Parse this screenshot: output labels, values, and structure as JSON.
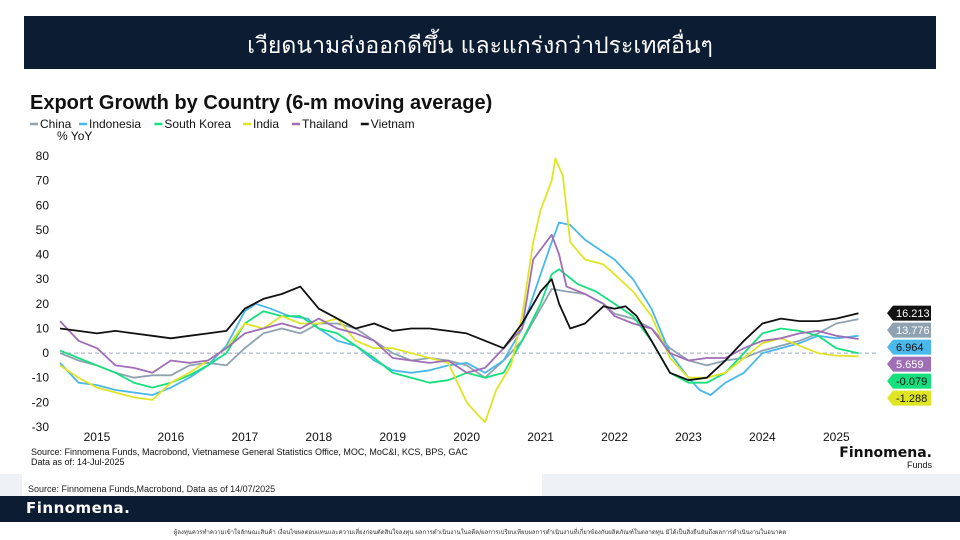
{
  "slide": {
    "title": "เวียดนามส่งออกดีขึ้น และแกร่งกว่าประเทศอื่นๆ",
    "source_note": "Source: Finnomena Funds,Macrobond, Data as of 14/07/2025",
    "footer_logo": "Finnomena.",
    "disclaimer": "ผู้ลงทุนควรทำความเข้าใจลักษณะสินค้า เงื่อนไขผลตอบแทนและความเสี่ยงก่อนตัดสินใจลงทุน ผลการดำเนินงานในอดีต/ผลการเปรียบเทียบผลการดำเนินงานที่เกี่ยวข้องกับผลิตภัณฑ์ในตลาดทุน มิได้เป็นสิ่งยืนยันถึงผลการดำเนินงานในอนาคต"
  },
  "chart_data": {
    "type": "line",
    "title": "Export Growth by Country (6-m moving average)",
    "ylabel": "% YoY",
    "xlabel": "",
    "ylim": [
      -30,
      80
    ],
    "xlim": [
      2014.5,
      2025.55
    ],
    "yticks": [
      80,
      70,
      60,
      50,
      40,
      30,
      20,
      10,
      0,
      -10,
      -20,
      -30
    ],
    "xticks": [
      {
        "label": "2015",
        "x": 2015.0
      },
      {
        "label": "2016",
        "x": 2016.0
      },
      {
        "label": "2017",
        "x": 2017.0
      },
      {
        "label": "2018",
        "x": 2018.0
      },
      {
        "label": "2019",
        "x": 2019.0
      },
      {
        "label": "2020",
        "x": 2020.0
      },
      {
        "label": "2021",
        "x": 2021.0
      },
      {
        "label": "2022",
        "x": 2022.0
      },
      {
        "label": "2023",
        "x": 2023.0
      },
      {
        "label": "2024",
        "x": 2024.0
      },
      {
        "label": "2025",
        "x": 2025.0
      }
    ],
    "zero_line": "dashed",
    "source": "Source: Finnomena Funds, Macrobond, Vietnamese General Statistics Office, MOC, MoC&I, KCS, BPS, GAC",
    "data_as_of": "Data as of: 14-Jul-2025",
    "brand": "Finnomena.",
    "brand_sub": "Funds",
    "series": [
      {
        "name": "China",
        "color": "#8fa2b2",
        "end_label": "13.776",
        "points": [
          [
            2014.5,
            0
          ],
          [
            2014.75,
            -3
          ],
          [
            2015.0,
            -5
          ],
          [
            2015.25,
            -8
          ],
          [
            2015.5,
            -10
          ],
          [
            2015.75,
            -9
          ],
          [
            2016.0,
            -9
          ],
          [
            2016.25,
            -5
          ],
          [
            2016.5,
            -4
          ],
          [
            2016.75,
            -5
          ],
          [
            2017.0,
            2
          ],
          [
            2017.25,
            8
          ],
          [
            2017.5,
            10
          ],
          [
            2017.75,
            8
          ],
          [
            2018.0,
            12
          ],
          [
            2018.25,
            12
          ],
          [
            2018.5,
            10
          ],
          [
            2018.75,
            5
          ],
          [
            2019.0,
            0
          ],
          [
            2019.25,
            -3
          ],
          [
            2019.5,
            -2
          ],
          [
            2019.75,
            -3
          ],
          [
            2020.0,
            -5
          ],
          [
            2020.25,
            -10
          ],
          [
            2020.5,
            -3
          ],
          [
            2020.75,
            5
          ],
          [
            2021.0,
            18
          ],
          [
            2021.15,
            26
          ],
          [
            2021.35,
            25
          ],
          [
            2021.6,
            24
          ],
          [
            2021.85,
            20
          ],
          [
            2022.0,
            16
          ],
          [
            2022.25,
            14
          ],
          [
            2022.5,
            10
          ],
          [
            2022.75,
            2
          ],
          [
            2023.0,
            -3
          ],
          [
            2023.25,
            -5
          ],
          [
            2023.5,
            -3
          ],
          [
            2023.75,
            -2
          ],
          [
            2024.0,
            1
          ],
          [
            2024.25,
            3
          ],
          [
            2024.5,
            5
          ],
          [
            2024.75,
            8
          ],
          [
            2025.0,
            12
          ],
          [
            2025.3,
            13.8
          ]
        ]
      },
      {
        "name": "Indonesia",
        "color": "#4ab8ea",
        "end_label": "6.964",
        "points": [
          [
            2014.5,
            -4
          ],
          [
            2014.75,
            -12
          ],
          [
            2015.0,
            -13
          ],
          [
            2015.25,
            -15
          ],
          [
            2015.5,
            -16
          ],
          [
            2015.75,
            -17
          ],
          [
            2016.0,
            -14
          ],
          [
            2016.25,
            -10
          ],
          [
            2016.5,
            -5
          ],
          [
            2016.75,
            3
          ],
          [
            2017.0,
            17
          ],
          [
            2017.15,
            20
          ],
          [
            2017.35,
            18
          ],
          [
            2017.6,
            15
          ],
          [
            2017.85,
            14
          ],
          [
            2018.0,
            10
          ],
          [
            2018.25,
            5
          ],
          [
            2018.5,
            3
          ],
          [
            2018.75,
            -3
          ],
          [
            2019.0,
            -7
          ],
          [
            2019.25,
            -8
          ],
          [
            2019.5,
            -7
          ],
          [
            2019.75,
            -5
          ],
          [
            2020.0,
            -4
          ],
          [
            2020.25,
            -8
          ],
          [
            2020.5,
            -3
          ],
          [
            2020.75,
            10
          ],
          [
            2021.0,
            32
          ],
          [
            2021.15,
            45
          ],
          [
            2021.25,
            53
          ],
          [
            2021.4,
            52
          ],
          [
            2021.6,
            46
          ],
          [
            2021.85,
            41
          ],
          [
            2022.0,
            38
          ],
          [
            2022.25,
            30
          ],
          [
            2022.5,
            18
          ],
          [
            2022.75,
            0
          ],
          [
            2023.0,
            -10
          ],
          [
            2023.15,
            -15
          ],
          [
            2023.3,
            -17
          ],
          [
            2023.5,
            -12
          ],
          [
            2023.75,
            -8
          ],
          [
            2024.0,
            0
          ],
          [
            2024.25,
            2
          ],
          [
            2024.5,
            4
          ],
          [
            2024.75,
            7
          ],
          [
            2025.0,
            6
          ],
          [
            2025.3,
            7
          ]
        ]
      },
      {
        "name": "South Korea",
        "color": "#16e07e",
        "end_label": "-0.079",
        "points": [
          [
            2014.5,
            1
          ],
          [
            2014.75,
            -2
          ],
          [
            2015.0,
            -5
          ],
          [
            2015.25,
            -8
          ],
          [
            2015.5,
            -12
          ],
          [
            2015.75,
            -14
          ],
          [
            2016.0,
            -12
          ],
          [
            2016.25,
            -9
          ],
          [
            2016.5,
            -5
          ],
          [
            2016.75,
            0
          ],
          [
            2017.0,
            12
          ],
          [
            2017.25,
            17
          ],
          [
            2017.5,
            15
          ],
          [
            2017.75,
            15
          ],
          [
            2018.0,
            10
          ],
          [
            2018.25,
            8
          ],
          [
            2018.5,
            3
          ],
          [
            2018.75,
            -2
          ],
          [
            2019.0,
            -8
          ],
          [
            2019.25,
            -10
          ],
          [
            2019.5,
            -12
          ],
          [
            2019.75,
            -11
          ],
          [
            2020.0,
            -8
          ],
          [
            2020.25,
            -10
          ],
          [
            2020.5,
            -8
          ],
          [
            2020.75,
            5
          ],
          [
            2021.0,
            20
          ],
          [
            2021.15,
            32
          ],
          [
            2021.25,
            34
          ],
          [
            2021.5,
            28
          ],
          [
            2021.75,
            25
          ],
          [
            2022.0,
            20
          ],
          [
            2022.25,
            15
          ],
          [
            2022.5,
            5
          ],
          [
            2022.75,
            -8
          ],
          [
            2023.0,
            -12
          ],
          [
            2023.25,
            -12
          ],
          [
            2023.5,
            -8
          ],
          [
            2023.75,
            0
          ],
          [
            2024.0,
            8
          ],
          [
            2024.25,
            10
          ],
          [
            2024.5,
            9
          ],
          [
            2024.75,
            7
          ],
          [
            2025.0,
            2
          ],
          [
            2025.3,
            -0.1
          ]
        ]
      },
      {
        "name": "India",
        "color": "#dfe524",
        "end_label": "-1.288",
        "points": [
          [
            2014.5,
            -5
          ],
          [
            2014.75,
            -10
          ],
          [
            2015.0,
            -14
          ],
          [
            2015.25,
            -16
          ],
          [
            2015.5,
            -18
          ],
          [
            2015.75,
            -19
          ],
          [
            2016.0,
            -12
          ],
          [
            2016.25,
            -8
          ],
          [
            2016.5,
            -3
          ],
          [
            2016.75,
            2
          ],
          [
            2017.0,
            12
          ],
          [
            2017.25,
            10
          ],
          [
            2017.5,
            15
          ],
          [
            2017.75,
            12
          ],
          [
            2018.0,
            12
          ],
          [
            2018.25,
            14
          ],
          [
            2018.5,
            5
          ],
          [
            2018.75,
            2
          ],
          [
            2019.0,
            2
          ],
          [
            2019.25,
            0
          ],
          [
            2019.5,
            -2
          ],
          [
            2019.75,
            -4
          ],
          [
            2020.0,
            -20
          ],
          [
            2020.15,
            -25
          ],
          [
            2020.25,
            -28
          ],
          [
            2020.4,
            -15
          ],
          [
            2020.6,
            -5
          ],
          [
            2020.75,
            15
          ],
          [
            2020.9,
            45
          ],
          [
            2021.0,
            58
          ],
          [
            2021.15,
            70
          ],
          [
            2021.2,
            79
          ],
          [
            2021.3,
            72
          ],
          [
            2021.4,
            45
          ],
          [
            2021.6,
            38
          ],
          [
            2021.85,
            36
          ],
          [
            2022.0,
            32
          ],
          [
            2022.25,
            25
          ],
          [
            2022.5,
            15
          ],
          [
            2022.75,
            -2
          ],
          [
            2023.0,
            -10
          ],
          [
            2023.25,
            -10
          ],
          [
            2023.5,
            -8
          ],
          [
            2023.75,
            -2
          ],
          [
            2024.0,
            4
          ],
          [
            2024.25,
            6
          ],
          [
            2024.5,
            3
          ],
          [
            2024.75,
            0
          ],
          [
            2025.0,
            -1
          ],
          [
            2025.3,
            -1.3
          ]
        ]
      },
      {
        "name": "Thailand",
        "color": "#9f6eb6",
        "end_label": "5.659",
        "points": [
          [
            2014.5,
            13
          ],
          [
            2014.75,
            5
          ],
          [
            2015.0,
            2
          ],
          [
            2015.25,
            -5
          ],
          [
            2015.5,
            -6
          ],
          [
            2015.75,
            -8
          ],
          [
            2016.0,
            -3
          ],
          [
            2016.25,
            -4
          ],
          [
            2016.5,
            -3
          ],
          [
            2016.75,
            2
          ],
          [
            2017.0,
            8
          ],
          [
            2017.25,
            10
          ],
          [
            2017.5,
            12
          ],
          [
            2017.75,
            10
          ],
          [
            2018.0,
            14
          ],
          [
            2018.25,
            10
          ],
          [
            2018.5,
            8
          ],
          [
            2018.75,
            5
          ],
          [
            2019.0,
            -2
          ],
          [
            2019.25,
            -3
          ],
          [
            2019.5,
            -4
          ],
          [
            2019.75,
            -3
          ],
          [
            2020.0,
            -8
          ],
          [
            2020.25,
            -6
          ],
          [
            2020.5,
            2
          ],
          [
            2020.75,
            10
          ],
          [
            2020.9,
            38
          ],
          [
            2021.0,
            42
          ],
          [
            2021.15,
            48
          ],
          [
            2021.25,
            40
          ],
          [
            2021.35,
            27
          ],
          [
            2021.6,
            24
          ],
          [
            2021.85,
            20
          ],
          [
            2022.0,
            15
          ],
          [
            2022.25,
            12
          ],
          [
            2022.5,
            10
          ],
          [
            2022.75,
            0
          ],
          [
            2023.0,
            -3
          ],
          [
            2023.25,
            -2
          ],
          [
            2023.5,
            -2
          ],
          [
            2023.75,
            2
          ],
          [
            2024.0,
            5
          ],
          [
            2024.25,
            6
          ],
          [
            2024.5,
            8
          ],
          [
            2024.75,
            9
          ],
          [
            2025.0,
            7
          ],
          [
            2025.3,
            5.7
          ]
        ]
      },
      {
        "name": "Vietnam",
        "color": "#111111",
        "end_label": "16.213",
        "points": [
          [
            2014.5,
            10
          ],
          [
            2014.75,
            9
          ],
          [
            2015.0,
            8
          ],
          [
            2015.25,
            9
          ],
          [
            2015.5,
            8
          ],
          [
            2015.75,
            7
          ],
          [
            2016.0,
            6
          ],
          [
            2016.25,
            7
          ],
          [
            2016.5,
            8
          ],
          [
            2016.75,
            9
          ],
          [
            2017.0,
            18
          ],
          [
            2017.25,
            22
          ],
          [
            2017.5,
            24
          ],
          [
            2017.75,
            27
          ],
          [
            2018.0,
            18
          ],
          [
            2018.25,
            14
          ],
          [
            2018.5,
            10
          ],
          [
            2018.75,
            12
          ],
          [
            2019.0,
            9
          ],
          [
            2019.25,
            10
          ],
          [
            2019.5,
            10
          ],
          [
            2019.75,
            9
          ],
          [
            2020.0,
            8
          ],
          [
            2020.25,
            5
          ],
          [
            2020.5,
            2
          ],
          [
            2020.75,
            12
          ],
          [
            2021.0,
            25
          ],
          [
            2021.15,
            30
          ],
          [
            2021.25,
            20
          ],
          [
            2021.4,
            10
          ],
          [
            2021.6,
            12
          ],
          [
            2021.85,
            19
          ],
          [
            2022.0,
            18
          ],
          [
            2022.15,
            19
          ],
          [
            2022.3,
            15
          ],
          [
            2022.5,
            5
          ],
          [
            2022.75,
            -8
          ],
          [
            2023.0,
            -11
          ],
          [
            2023.25,
            -10
          ],
          [
            2023.5,
            -3
          ],
          [
            2023.75,
            5
          ],
          [
            2024.0,
            12
          ],
          [
            2024.25,
            14
          ],
          [
            2024.5,
            13
          ],
          [
            2024.75,
            13
          ],
          [
            2025.0,
            14
          ],
          [
            2025.3,
            16.2
          ]
        ]
      }
    ]
  }
}
